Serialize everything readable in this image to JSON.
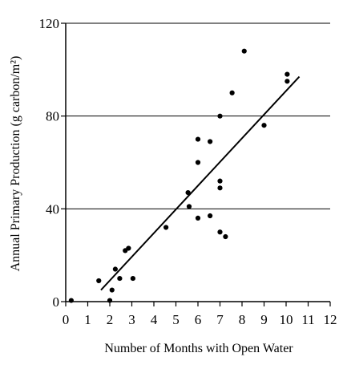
{
  "chart_data": {
    "type": "scatter",
    "xlabel": "Number of Months with Open Water",
    "ylabel": "Annual Primary Production (g carbon/m²)",
    "xlim": [
      0,
      12
    ],
    "ylim": [
      0,
      120
    ],
    "x_ticks": [
      "0",
      "1",
      "2",
      "3",
      "4",
      "5",
      "6",
      "7",
      "8",
      "9",
      "10",
      "11",
      "12"
    ],
    "y_ticks": [
      "0",
      "40",
      "80",
      "120"
    ],
    "grid": "horizontal lines at 40, 80, 120",
    "series": [
      {
        "points": [
          {
            "x": 0.25,
            "y": 0.5
          },
          {
            "x": 1.5,
            "y": 9
          },
          {
            "x": 2.0,
            "y": 0.5
          },
          {
            "x": 2.1,
            "y": 5
          },
          {
            "x": 2.25,
            "y": 14
          },
          {
            "x": 2.45,
            "y": 10
          },
          {
            "x": 2.7,
            "y": 22
          },
          {
            "x": 2.85,
            "y": 23
          },
          {
            "x": 3.05,
            "y": 10
          },
          {
            "x": 4.55,
            "y": 32
          },
          {
            "x": 5.55,
            "y": 47
          },
          {
            "x": 5.6,
            "y": 41
          },
          {
            "x": 6.0,
            "y": 60
          },
          {
            "x": 6.0,
            "y": 70
          },
          {
            "x": 6.0,
            "y": 36
          },
          {
            "x": 6.55,
            "y": 69
          },
          {
            "x": 6.55,
            "y": 37
          },
          {
            "x": 7.0,
            "y": 80
          },
          {
            "x": 7.0,
            "y": 52
          },
          {
            "x": 7.0,
            "y": 49
          },
          {
            "x": 7.0,
            "y": 30
          },
          {
            "x": 7.25,
            "y": 28
          },
          {
            "x": 7.55,
            "y": 90
          },
          {
            "x": 8.1,
            "y": 108
          },
          {
            "x": 9.0,
            "y": 76
          },
          {
            "x": 10.05,
            "y": 98
          },
          {
            "x": 10.05,
            "y": 95
          }
        ]
      }
    ],
    "trendline": {
      "x": [
        1.6,
        10.6
      ],
      "y": [
        5,
        97
      ]
    }
  }
}
